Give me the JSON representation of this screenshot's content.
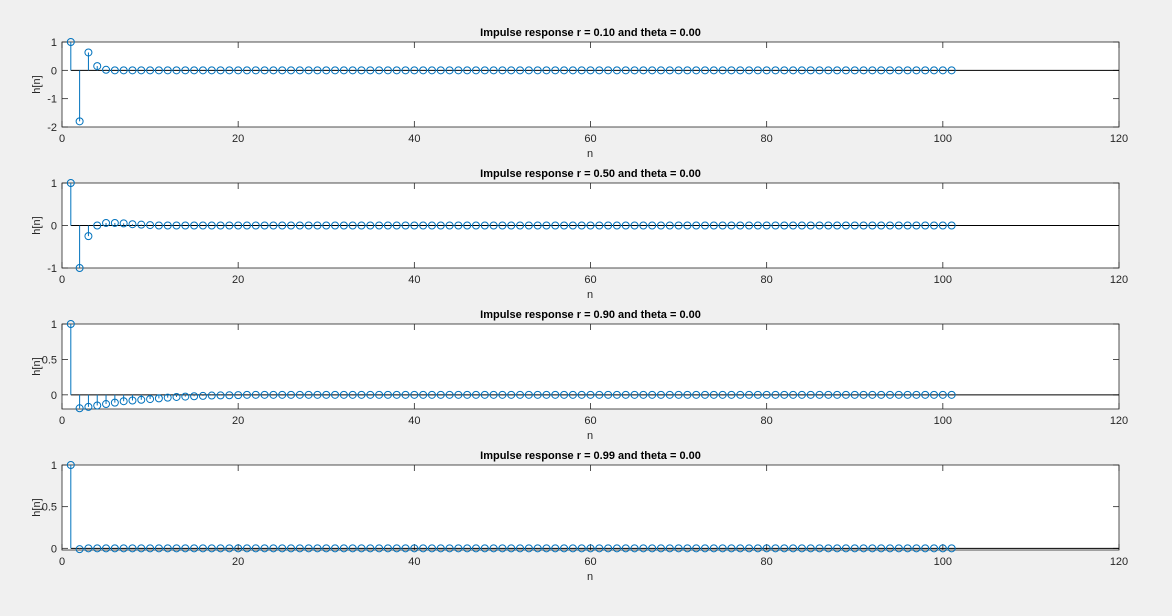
{
  "figure": {
    "background": "#f0f0f0",
    "axes_background": "#ffffff",
    "axis_color": "#262626",
    "stem_color": "#0072bd"
  },
  "chart_data": [
    {
      "type": "stem",
      "title": "Impulse response r = 0.10 and theta = 0.00",
      "xlabel": "n",
      "ylabel": "h[n]",
      "xlim": [
        0,
        120
      ],
      "ylim": [
        -2,
        1
      ],
      "xticks": [
        0,
        20,
        40,
        60,
        80,
        100,
        120
      ],
      "yticks": [
        -2,
        -1,
        0,
        1
      ],
      "x_start": 1,
      "x_end": 101,
      "values": [
        1,
        -1.8,
        0.63,
        0.15,
        0.02,
        0.0
      ],
      "baseline": 0,
      "grid": false
    },
    {
      "type": "stem",
      "title": "Impulse response r = 0.50 and theta = 0.00",
      "xlabel": "n",
      "ylabel": "h[n]",
      "xlim": [
        0,
        120
      ],
      "ylim": [
        -1,
        1
      ],
      "xticks": [
        0,
        20,
        40,
        60,
        80,
        100,
        120
      ],
      "yticks": [
        -1,
        0,
        1
      ],
      "x_start": 1,
      "x_end": 101,
      "values": [
        1,
        -1.0,
        -0.25,
        0.0,
        0.06,
        0.06,
        0.05,
        0.03,
        0.02,
        0.01,
        0.0
      ],
      "baseline": 0,
      "grid": false
    },
    {
      "type": "stem",
      "title": "Impulse response r = 0.90 and theta = 0.00",
      "xlabel": "n",
      "ylabel": "h[n]",
      "xlim": [
        0,
        120
      ],
      "ylim": [
        -0.2,
        1
      ],
      "xticks": [
        0,
        20,
        40,
        60,
        80,
        100,
        120
      ],
      "yticks": [
        0,
        0.5,
        1
      ],
      "x_start": 1,
      "x_end": 101,
      "values": [
        1,
        -0.19,
        -0.17,
        -0.15,
        -0.13,
        -0.11,
        -0.09,
        -0.08,
        -0.07,
        -0.06,
        -0.05,
        -0.04,
        -0.03,
        -0.025,
        -0.02,
        -0.015,
        -0.01,
        -0.008,
        -0.006,
        -0.004,
        0.0
      ],
      "baseline": 0,
      "grid": false
    },
    {
      "type": "stem",
      "title": "Impulse response r = 0.99 and theta = 0.00",
      "xlabel": "n",
      "ylabel": "h[n]",
      "xlim": [
        0,
        120
      ],
      "ylim": [
        -0.02,
        1
      ],
      "xticks": [
        0,
        20,
        40,
        60,
        80,
        100,
        120
      ],
      "yticks": [
        0,
        0.5,
        1
      ],
      "x_start": 1,
      "x_end": 101,
      "values": [
        1,
        -0.01
      ],
      "baseline": 0,
      "grid": false
    }
  ]
}
